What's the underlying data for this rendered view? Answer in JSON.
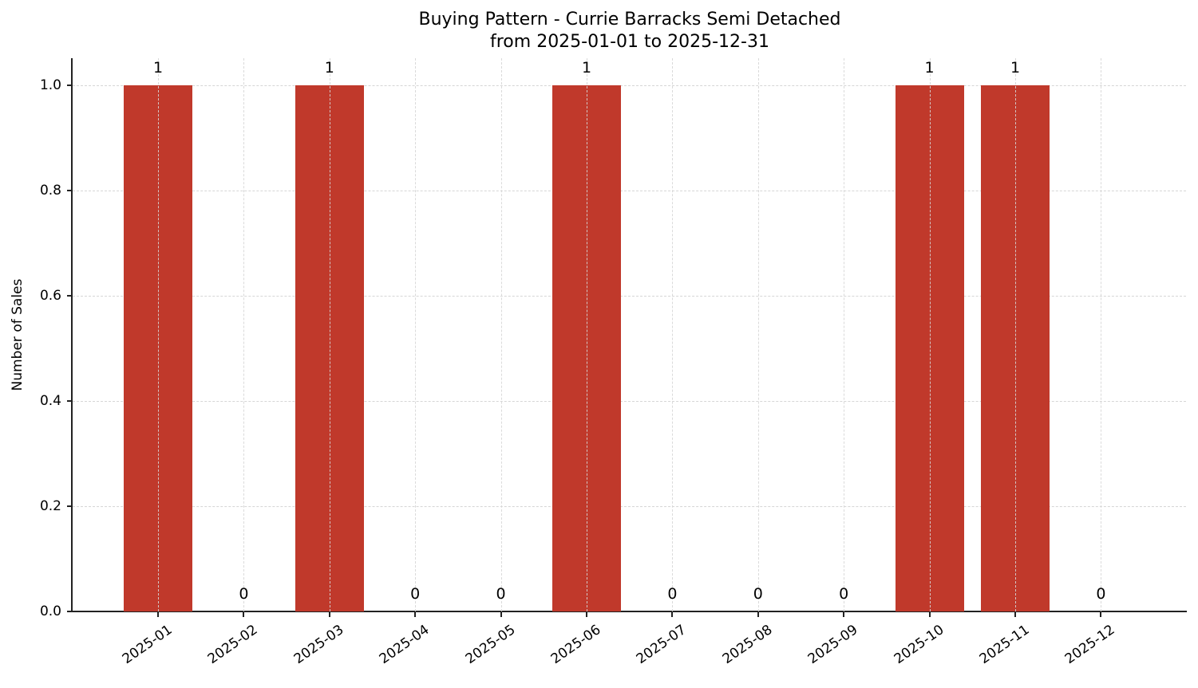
{
  "chart_data": {
    "type": "bar",
    "title": "Buying Pattern - Currie Barracks Semi Detached\nfrom 2025-01-01 to 2025-12-31",
    "title_lines": [
      "Buying Pattern - Currie Barracks Semi Detached",
      "from 2025-01-01 to 2025-12-31"
    ],
    "xlabel": "",
    "ylabel": "Number of Sales",
    "categories": [
      "2025-01",
      "2025-02",
      "2025-03",
      "2025-04",
      "2025-05",
      "2025-06",
      "2025-07",
      "2025-08",
      "2025-09",
      "2025-10",
      "2025-11",
      "2025-12"
    ],
    "values": [
      1,
      0,
      1,
      0,
      0,
      1,
      0,
      0,
      0,
      1,
      1,
      0
    ],
    "value_labels": [
      "1",
      "0",
      "1",
      "0",
      "0",
      "1",
      "0",
      "0",
      "0",
      "1",
      "1",
      "0"
    ],
    "ylim": [
      0,
      1.05
    ],
    "yticks": [
      "0.0",
      "0.2",
      "0.4",
      "0.6",
      "0.8",
      "1.0"
    ],
    "grid": true,
    "legend": null,
    "bar_color": "#c0392b"
  }
}
